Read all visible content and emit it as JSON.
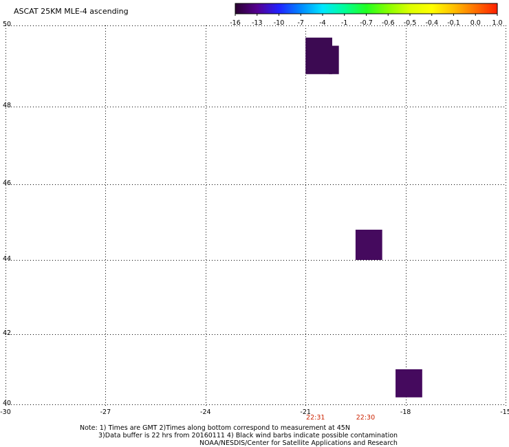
{
  "title": "ASCAT 25KM MLE-4 ascending",
  "colorbar": {
    "labels": [
      "-16",
      "-13",
      "-10",
      "-7",
      "-4",
      "-1",
      "-0.7",
      "-0.6",
      "-0.5",
      "-0.4",
      "-0.1",
      "0.0",
      "1.0"
    ],
    "colors": [
      "#2a0030",
      "#550090",
      "#2222ff",
      "#0088ff",
      "#00e6ff",
      "#00ff99",
      "#22ff22",
      "#88ff00",
      "#ddff00",
      "#ffff00",
      "#ffc000",
      "#ff7000",
      "#ff2000"
    ]
  },
  "axes": {
    "lon_ticks": [
      -30,
      -27,
      -24,
      -21,
      -18,
      -15
    ],
    "lat_ticks": [
      40,
      42,
      44,
      46,
      48,
      50
    ],
    "lon_range": [
      -30,
      -15
    ],
    "lat_range": [
      40,
      50
    ]
  },
  "swath_times": [
    {
      "label": "22:31",
      "lon": -20.7
    },
    {
      "label": "22:30",
      "lon": -19.2
    }
  ],
  "time_color": "#cc2200",
  "data_cells": [
    {
      "lon0": -21.0,
      "lon1": -20.2,
      "lat0": 48.8,
      "lat1": 49.7,
      "color": "#3c0a52"
    },
    {
      "lon0": -20.3,
      "lon1": -20.0,
      "lat0": 48.8,
      "lat1": 49.5,
      "color": "#3c0a52"
    },
    {
      "lon0": -19.5,
      "lon1": -18.7,
      "lat0": 44.0,
      "lat1": 44.8,
      "color": "#450a5e"
    },
    {
      "lon0": -18.3,
      "lon1": -17.5,
      "lat0": 40.2,
      "lat1": 41.0,
      "color": "#450a5e"
    }
  ],
  "footer": {
    "line1": "Note: 1) Times are GMT 2)Times along bottom correspond to measurement at 45N",
    "line2": "3)Data buffer is 22 hrs from 20160111 4) Black wind barbs indicate possible contamination",
    "line3": "NOAA/NESDIS/Center for Satellite Applications and Research"
  }
}
